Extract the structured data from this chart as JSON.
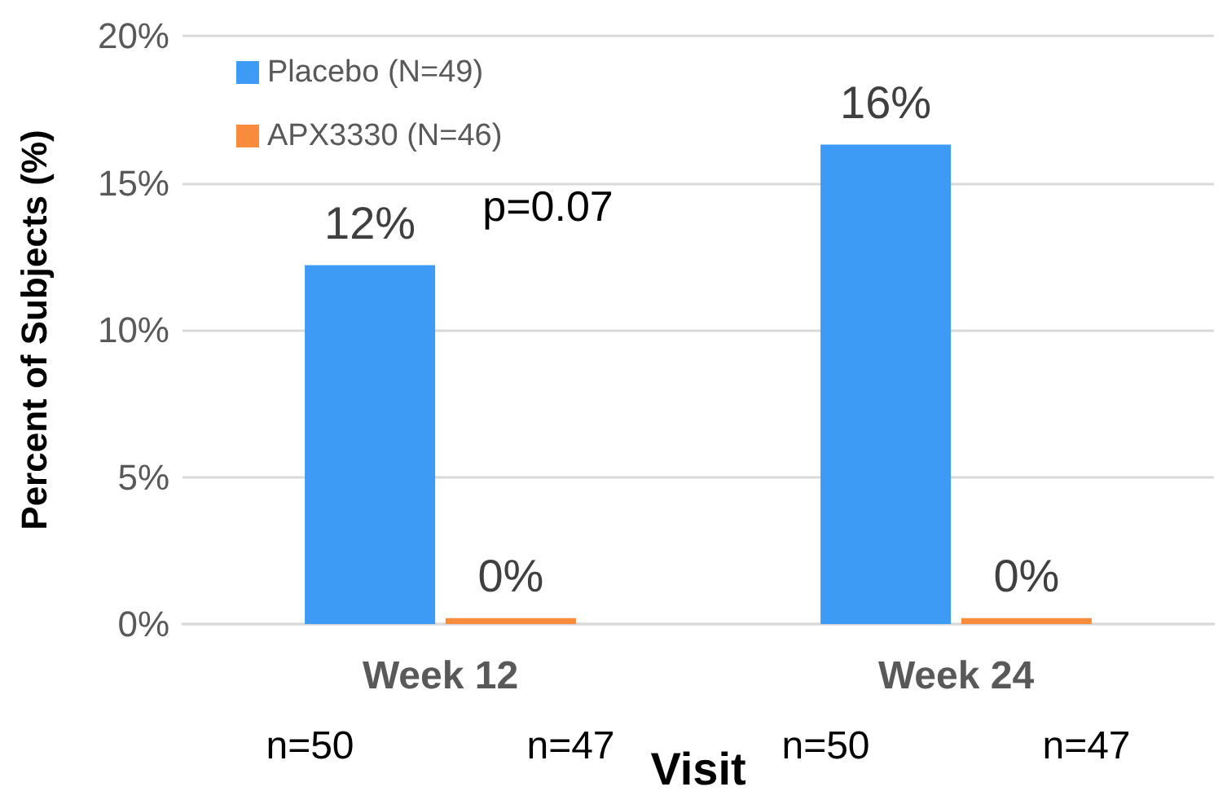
{
  "chart_data": {
    "type": "bar",
    "xlabel": "Visit",
    "ylabel": "Percent of Subjects (%)",
    "categories": [
      "Week 12",
      "Week 24"
    ],
    "series": [
      {
        "name": "Placebo (N=49)",
        "color": "#3d9bf5",
        "values": [
          12.2,
          16.3
        ],
        "value_labels": [
          "12%",
          "16%"
        ]
      },
      {
        "name": "APX3330 (N=46)",
        "color": "#f98b3c",
        "values": [
          0.2,
          0.2
        ],
        "value_labels": [
          "0%",
          "0%"
        ]
      }
    ],
    "ylim": [
      0,
      20
    ],
    "yticks": [
      {
        "value": 0,
        "label": "0%"
      },
      {
        "value": 5,
        "label": "5%"
      },
      {
        "value": 10,
        "label": "10%"
      },
      {
        "value": 15,
        "label": "15%"
      },
      {
        "value": 20,
        "label": "20%"
      }
    ],
    "grid": "y",
    "legend": "top left",
    "annotations": [
      "p=0.07",
      "n=50",
      "n=47",
      "n=50",
      "n=47"
    ]
  }
}
